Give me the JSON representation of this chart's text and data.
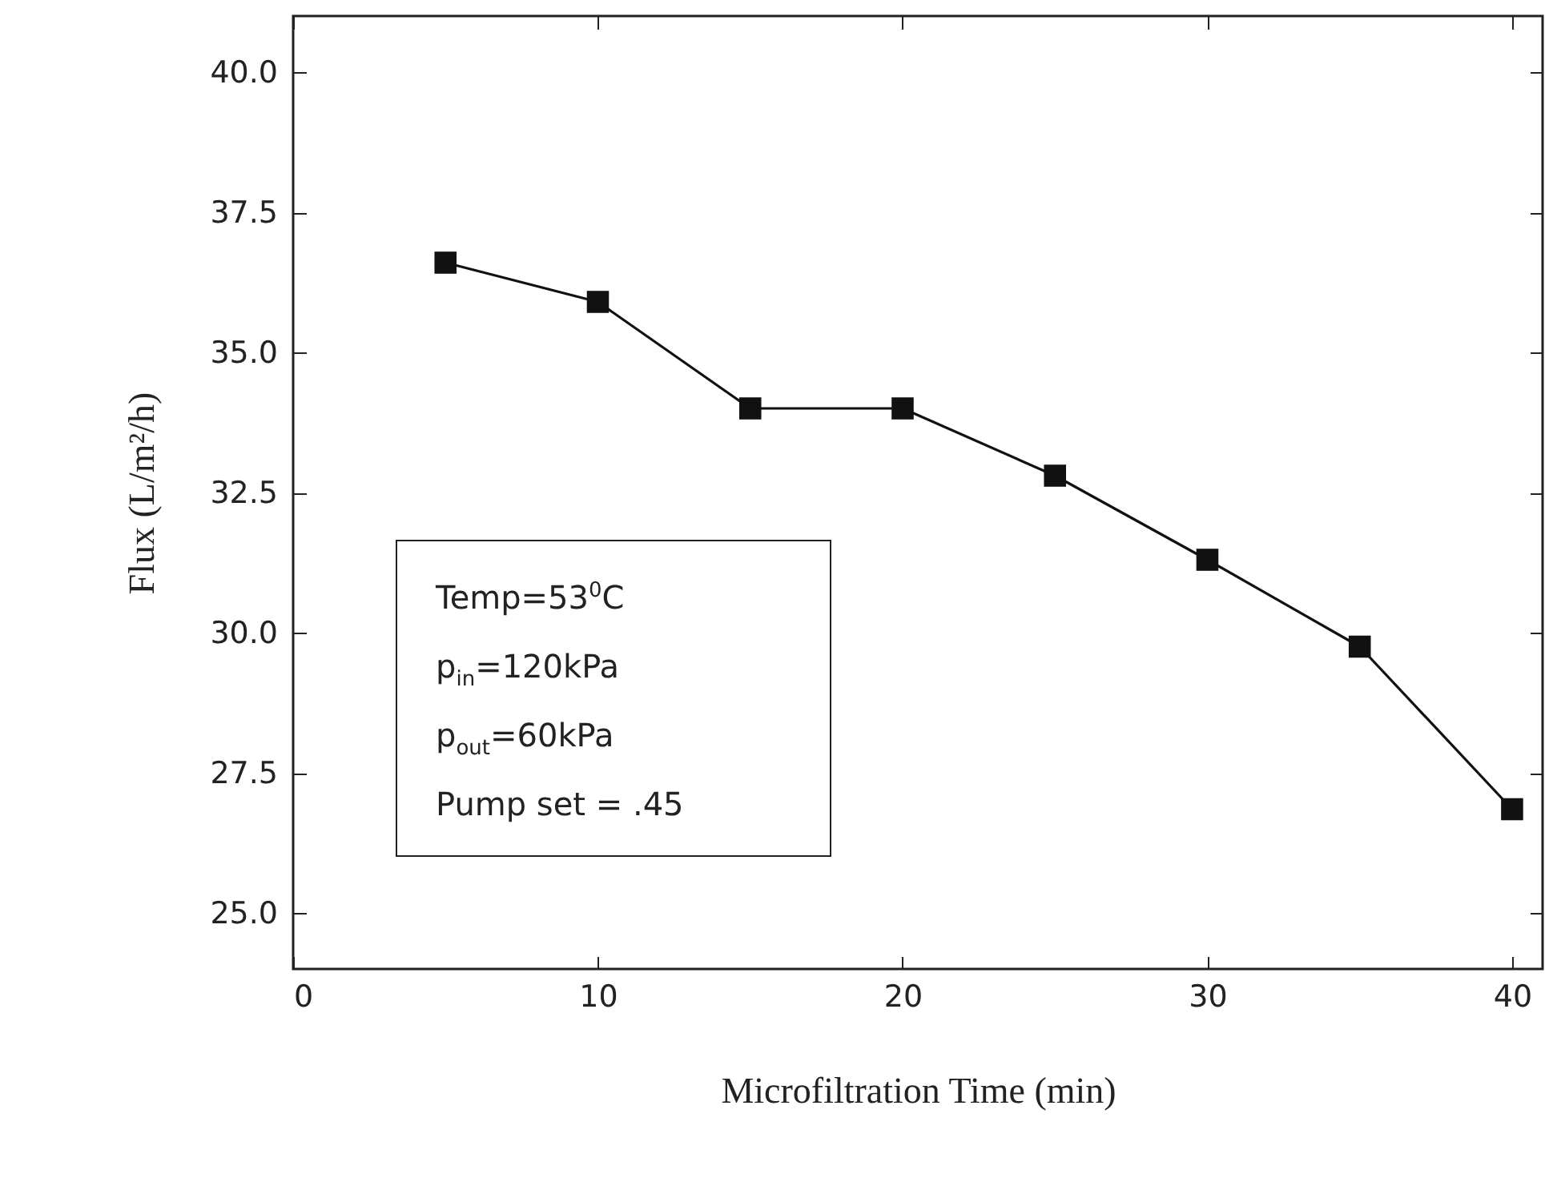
{
  "chart_data": {
    "type": "line",
    "xlabel": "Microfiltration Time (min)",
    "ylabel": "Flux (L/m²/h)",
    "x": [
      5,
      10,
      15,
      20,
      25,
      30,
      35,
      40
    ],
    "series": [
      {
        "color": "#111111",
        "values": [
          36.6,
          35.9,
          34.0,
          34.0,
          32.8,
          31.3,
          29.75,
          26.85
        ]
      }
    ],
    "xlim": [
      0,
      41
    ],
    "ylim": [
      24,
      41
    ],
    "xticks": [
      0,
      10,
      20,
      30,
      40
    ],
    "yticks": [
      {
        "value": 25,
        "label": "25.0"
      },
      {
        "value": 27.5,
        "label": "27.5"
      },
      {
        "value": 30,
        "label": "30.0"
      },
      {
        "value": 32.5,
        "label": "32.5"
      },
      {
        "value": 35,
        "label": "35.0"
      },
      {
        "value": 37.5,
        "label": "37.5"
      },
      {
        "value": 40,
        "label": "40.0"
      }
    ],
    "grid": false,
    "marker": "square",
    "line_style": "solid",
    "annotations": [
      "Temp=53$^{0}$C",
      "p$_{in}$=120kPa",
      "p$_{out}$=60kPa",
      "Pump set = .45"
    ]
  }
}
